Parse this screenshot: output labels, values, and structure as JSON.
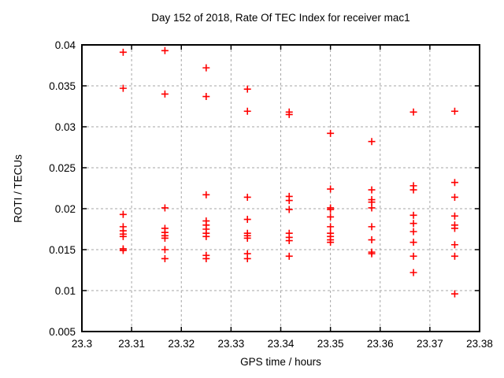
{
  "chart_data": {
    "type": "scatter",
    "title": "Day 152 of 2018, Rate Of TEC Index for receiver mac1",
    "xlabel": "GPS time / hours",
    "ylabel": "ROTI / TECUs",
    "xlim": [
      23.3,
      23.38
    ],
    "ylim": [
      0.005,
      0.04
    ],
    "xticks": {
      "values": [
        23.3,
        23.31,
        23.32,
        23.33,
        23.34,
        23.35,
        23.36,
        23.37,
        23.38
      ],
      "labels": [
        "23.3",
        "23.31",
        "23.32",
        "23.33",
        "23.34",
        "23.35",
        "23.36",
        "23.37",
        "23.38"
      ]
    },
    "yticks": {
      "values": [
        0.005,
        0.01,
        0.015,
        0.02,
        0.025,
        0.03,
        0.035,
        0.04
      ],
      "labels": [
        "0.005",
        "0.01",
        "0.015",
        "0.02",
        "0.025",
        "0.03",
        "0.035",
        "0.04"
      ]
    },
    "grid": true,
    "legend_position": "none",
    "colors": {
      "marker": "#ff0000",
      "grid": "#a6a6a6",
      "axis": "#000000",
      "text": "#000000",
      "background": "#ffffff"
    },
    "marker": {
      "shape": "plus",
      "size": 9,
      "stroke_width": 1.6
    },
    "series": [
      {
        "name": "ROTI",
        "points": [
          [
            23.3083,
            0.0391
          ],
          [
            23.3083,
            0.0347
          ],
          [
            23.3083,
            0.0193
          ],
          [
            23.3083,
            0.0178
          ],
          [
            23.3083,
            0.0173
          ],
          [
            23.3083,
            0.0169
          ],
          [
            23.3083,
            0.0166
          ],
          [
            23.3083,
            0.0151
          ],
          [
            23.3083,
            0.0149
          ],
          [
            23.3167,
            0.0393
          ],
          [
            23.3167,
            0.034
          ],
          [
            23.3167,
            0.0201
          ],
          [
            23.3167,
            0.0176
          ],
          [
            23.3167,
            0.0171
          ],
          [
            23.3167,
            0.0167
          ],
          [
            23.3167,
            0.0164
          ],
          [
            23.3167,
            0.015
          ],
          [
            23.3167,
            0.0139
          ],
          [
            23.325,
            0.0372
          ],
          [
            23.325,
            0.0337
          ],
          [
            23.325,
            0.0217
          ],
          [
            23.325,
            0.0185
          ],
          [
            23.325,
            0.018
          ],
          [
            23.325,
            0.0175
          ],
          [
            23.325,
            0.017
          ],
          [
            23.325,
            0.0166
          ],
          [
            23.325,
            0.0143
          ],
          [
            23.325,
            0.0139
          ],
          [
            23.3333,
            0.0346
          ],
          [
            23.3333,
            0.0319
          ],
          [
            23.3333,
            0.0214
          ],
          [
            23.3333,
            0.0187
          ],
          [
            23.3333,
            0.017
          ],
          [
            23.3333,
            0.0167
          ],
          [
            23.3333,
            0.0164
          ],
          [
            23.3333,
            0.0145
          ],
          [
            23.3333,
            0.0139
          ],
          [
            23.3417,
            0.0318
          ],
          [
            23.3417,
            0.0315
          ],
          [
            23.3417,
            0.0215
          ],
          [
            23.3417,
            0.021
          ],
          [
            23.3417,
            0.0199
          ],
          [
            23.3417,
            0.017
          ],
          [
            23.3417,
            0.0165
          ],
          [
            23.3417,
            0.0161
          ],
          [
            23.3417,
            0.0142
          ],
          [
            23.35,
            0.0292
          ],
          [
            23.35,
            0.0224
          ],
          [
            23.35,
            0.0201
          ],
          [
            23.35,
            0.0199
          ],
          [
            23.35,
            0.019
          ],
          [
            23.35,
            0.0178
          ],
          [
            23.35,
            0.017
          ],
          [
            23.35,
            0.0166
          ],
          [
            23.35,
            0.0162
          ],
          [
            23.35,
            0.0159
          ],
          [
            23.3583,
            0.0282
          ],
          [
            23.3583,
            0.0223
          ],
          [
            23.3583,
            0.0211
          ],
          [
            23.3583,
            0.0208
          ],
          [
            23.3583,
            0.0201
          ],
          [
            23.3583,
            0.0178
          ],
          [
            23.3583,
            0.0162
          ],
          [
            23.3583,
            0.0147
          ],
          [
            23.3583,
            0.0145
          ],
          [
            23.3667,
            0.0318
          ],
          [
            23.3667,
            0.0228
          ],
          [
            23.3667,
            0.0223
          ],
          [
            23.3667,
            0.0192
          ],
          [
            23.3667,
            0.0182
          ],
          [
            23.3667,
            0.0172
          ],
          [
            23.3667,
            0.0159
          ],
          [
            23.3667,
            0.0142
          ],
          [
            23.3667,
            0.0122
          ],
          [
            23.375,
            0.0319
          ],
          [
            23.375,
            0.0232
          ],
          [
            23.375,
            0.0214
          ],
          [
            23.375,
            0.0191
          ],
          [
            23.375,
            0.018
          ],
          [
            23.375,
            0.0176
          ],
          [
            23.375,
            0.0156
          ],
          [
            23.375,
            0.0142
          ],
          [
            23.375,
            0.0096
          ]
        ]
      }
    ]
  }
}
